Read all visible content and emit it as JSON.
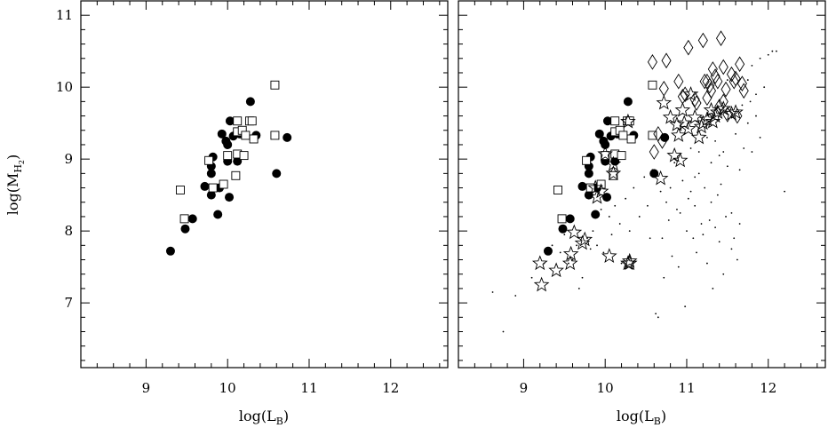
{
  "chart_data": [
    {
      "type": "scatter",
      "panel": "left",
      "xlabel": "log(L_B)",
      "ylabel": "log(M_H2)",
      "xlim": [
        8.2,
        12.7
      ],
      "ylim": [
        6.1,
        11.2
      ],
      "x_ticks": [
        9,
        10,
        11,
        12
      ],
      "y_ticks": [
        7,
        8,
        9,
        10,
        11
      ],
      "grid": false,
      "series": [
        {
          "marker": "filled-circle",
          "points": [
            [
              9.3,
              7.72
            ],
            [
              9.48,
              8.03
            ],
            [
              9.57,
              8.17
            ],
            [
              9.72,
              8.62
            ],
            [
              9.8,
              8.5
            ],
            [
              9.8,
              8.8
            ],
            [
              9.8,
              8.9
            ],
            [
              9.82,
              9.03
            ],
            [
              9.88,
              8.23
            ],
            [
              9.9,
              8.6
            ],
            [
              9.93,
              9.35
            ],
            [
              9.98,
              9.25
            ],
            [
              10.0,
              9.2
            ],
            [
              10.0,
              8.97
            ],
            [
              10.02,
              8.47
            ],
            [
              10.03,
              9.53
            ],
            [
              10.07,
              9.32
            ],
            [
              10.12,
              8.97
            ],
            [
              10.15,
              9.35
            ],
            [
              10.28,
              9.8
            ],
            [
              10.35,
              9.33
            ],
            [
              10.6,
              8.8
            ],
            [
              10.73,
              9.3
            ]
          ]
        },
        {
          "marker": "open-square",
          "points": [
            [
              9.42,
              8.57
            ],
            [
              9.47,
              8.17
            ],
            [
              9.77,
              8.98
            ],
            [
              9.82,
              8.6
            ],
            [
              9.95,
              8.65
            ],
            [
              10.0,
              9.05
            ],
            [
              10.1,
              8.77
            ],
            [
              10.12,
              9.38
            ],
            [
              10.12,
              9.07
            ],
            [
              10.18,
              9.4
            ],
            [
              10.2,
              9.05
            ],
            [
              10.22,
              9.33
            ],
            [
              10.27,
              9.53
            ],
            [
              10.3,
              9.53
            ],
            [
              10.32,
              9.28
            ],
            [
              10.58,
              10.03
            ],
            [
              10.58,
              9.33
            ],
            [
              10.12,
              9.53
            ]
          ]
        }
      ]
    },
    {
      "type": "scatter",
      "panel": "right",
      "xlabel": "log(L_B)",
      "ylabel": "",
      "xlim": [
        8.2,
        12.7
      ],
      "ylim": [
        6.1,
        11.2
      ],
      "x_ticks": [
        9,
        10,
        11,
        12
      ],
      "y_ticks": [
        7,
        8,
        9,
        10,
        11
      ],
      "grid": false,
      "series": [
        {
          "marker": "filled-circle",
          "points": [
            [
              9.3,
              7.72
            ],
            [
              9.48,
              8.03
            ],
            [
              9.57,
              8.17
            ],
            [
              9.72,
              8.62
            ],
            [
              9.8,
              8.5
            ],
            [
              9.8,
              8.8
            ],
            [
              9.8,
              8.9
            ],
            [
              9.82,
              9.03
            ],
            [
              9.88,
              8.23
            ],
            [
              9.9,
              8.6
            ],
            [
              9.93,
              9.35
            ],
            [
              9.98,
              9.25
            ],
            [
              10.0,
              9.2
            ],
            [
              10.0,
              8.97
            ],
            [
              10.02,
              8.47
            ],
            [
              10.03,
              9.53
            ],
            [
              10.07,
              9.32
            ],
            [
              10.12,
              8.97
            ],
            [
              10.15,
              9.35
            ],
            [
              10.28,
              9.8
            ],
            [
              10.35,
              9.33
            ],
            [
              10.6,
              8.8
            ],
            [
              10.73,
              9.3
            ]
          ]
        },
        {
          "marker": "open-square",
          "points": [
            [
              9.42,
              8.57
            ],
            [
              9.47,
              8.17
            ],
            [
              9.77,
              8.98
            ],
            [
              9.82,
              8.6
            ],
            [
              9.95,
              8.65
            ],
            [
              10.0,
              9.05
            ],
            [
              10.1,
              8.77
            ],
            [
              10.12,
              9.38
            ],
            [
              10.12,
              9.07
            ],
            [
              10.18,
              9.4
            ],
            [
              10.2,
              9.05
            ],
            [
              10.22,
              9.33
            ],
            [
              10.27,
              9.53
            ],
            [
              10.3,
              9.53
            ],
            [
              10.32,
              9.28
            ],
            [
              10.58,
              10.03
            ],
            [
              10.58,
              9.33
            ],
            [
              10.12,
              9.53
            ]
          ]
        },
        {
          "marker": "open-star",
          "points": [
            [
              9.2,
              7.55
            ],
            [
              9.22,
              7.25
            ],
            [
              9.4,
              7.45
            ],
            [
              9.57,
              7.55
            ],
            [
              9.58,
              7.68
            ],
            [
              9.62,
              7.98
            ],
            [
              9.72,
              7.83
            ],
            [
              9.75,
              7.88
            ],
            [
              9.88,
              8.6
            ],
            [
              9.9,
              8.47
            ],
            [
              9.95,
              8.55
            ],
            [
              10.0,
              9.07
            ],
            [
              10.05,
              7.65
            ],
            [
              10.1,
              8.93
            ],
            [
              10.1,
              8.8
            ],
            [
              10.28,
              7.55
            ],
            [
              10.3,
              7.58
            ],
            [
              10.3,
              7.55
            ],
            [
              10.28,
              9.52
            ],
            [
              10.68,
              8.73
            ],
            [
              10.72,
              9.78
            ],
            [
              10.8,
              9.58
            ],
            [
              10.85,
              9.05
            ],
            [
              10.88,
              9.48
            ],
            [
              10.9,
              9.33
            ],
            [
              10.92,
              8.98
            ],
            [
              10.95,
              9.68
            ],
            [
              11.05,
              9.9
            ],
            [
              11.1,
              9.58
            ],
            [
              11.15,
              9.3
            ],
            [
              11.2,
              9.5
            ],
            [
              11.25,
              9.55
            ],
            [
              11.3,
              9.68
            ],
            [
              11.35,
              9.6
            ],
            [
              11.38,
              9.65
            ],
            [
              11.45,
              9.7
            ],
            [
              11.55,
              9.63
            ],
            [
              11.6,
              9.65
            ],
            [
              11.02,
              9.42
            ],
            [
              11.32,
              9.52
            ],
            [
              11.18,
              9.45
            ],
            [
              10.97,
              9.5
            ]
          ]
        },
        {
          "marker": "open-diamond",
          "points": [
            [
              10.58,
              10.35
            ],
            [
              10.65,
              9.35
            ],
            [
              10.72,
              9.98
            ],
            [
              10.75,
              10.37
            ],
            [
              10.9,
              10.08
            ],
            [
              10.95,
              9.87
            ],
            [
              10.98,
              9.9
            ],
            [
              11.02,
              10.55
            ],
            [
              11.1,
              9.83
            ],
            [
              11.12,
              9.78
            ],
            [
              11.2,
              10.65
            ],
            [
              11.22,
              10.08
            ],
            [
              11.25,
              10.08
            ],
            [
              11.28,
              10.02
            ],
            [
              11.32,
              10.25
            ],
            [
              11.35,
              10.15
            ],
            [
              11.38,
              10.08
            ],
            [
              11.4,
              9.73
            ],
            [
              11.42,
              10.68
            ],
            [
              11.45,
              10.28
            ],
            [
              11.48,
              9.97
            ],
            [
              11.5,
              9.62
            ],
            [
              11.55,
              10.18
            ],
            [
              11.58,
              10.08
            ],
            [
              11.6,
              10.12
            ],
            [
              11.65,
              10.32
            ],
            [
              11.68,
              10.05
            ],
            [
              11.62,
              9.6
            ],
            [
              11.3,
              9.95
            ],
            [
              11.25,
              9.85
            ],
            [
              11.7,
              9.95
            ],
            [
              10.6,
              9.1
            ],
            [
              10.7,
              9.25
            ],
            [
              11.45,
              9.8
            ]
          ]
        },
        {
          "marker": "dot",
          "points": [
            [
              8.62,
              7.15
            ],
            [
              8.75,
              6.6
            ],
            [
              8.9,
              7.1
            ],
            [
              9.1,
              7.35
            ],
            [
              9.25,
              7.55
            ],
            [
              9.35,
              7.8
            ],
            [
              9.45,
              7.7
            ],
            [
              9.5,
              7.95
            ],
            [
              9.55,
              7.55
            ],
            [
              9.6,
              7.6
            ],
            [
              9.65,
              7.8
            ],
            [
              9.68,
              7.2
            ],
            [
              9.72,
              7.35
            ],
            [
              9.78,
              7.9
            ],
            [
              9.82,
              7.75
            ],
            [
              9.85,
              8.0
            ],
            [
              9.9,
              7.8
            ],
            [
              9.95,
              8.3
            ],
            [
              9.98,
              7.7
            ],
            [
              10.05,
              8.2
            ],
            [
              10.08,
              7.95
            ],
            [
              10.12,
              8.35
            ],
            [
              10.18,
              8.1
            ],
            [
              10.2,
              7.55
            ],
            [
              10.25,
              8.45
            ],
            [
              10.3,
              8.0
            ],
            [
              10.35,
              8.6
            ],
            [
              10.42,
              8.2
            ],
            [
              10.48,
              8.75
            ],
            [
              10.52,
              8.35
            ],
            [
              10.55,
              7.9
            ],
            [
              10.58,
              8.85
            ],
            [
              10.62,
              6.85
            ],
            [
              10.65,
              6.8
            ],
            [
              10.68,
              8.55
            ],
            [
              10.7,
              7.9
            ],
            [
              10.72,
              7.35
            ],
            [
              10.75,
              8.4
            ],
            [
              10.78,
              8.15
            ],
            [
              10.8,
              8.6
            ],
            [
              10.82,
              7.65
            ],
            [
              10.85,
              8.95
            ],
            [
              10.88,
              8.3
            ],
            [
              10.9,
              7.5
            ],
            [
              10.92,
              8.25
            ],
            [
              10.95,
              8.7
            ],
            [
              10.98,
              6.95
            ],
            [
              11.0,
              8.0
            ],
            [
              11.02,
              8.45
            ],
            [
              11.05,
              8.55
            ],
            [
              11.08,
              7.9
            ],
            [
              11.1,
              8.35
            ],
            [
              11.12,
              7.7
            ],
            [
              11.15,
              8.8
            ],
            [
              11.18,
              8.1
            ],
            [
              11.2,
              7.95
            ],
            [
              11.22,
              8.6
            ],
            [
              11.25,
              7.55
            ],
            [
              11.28,
              8.15
            ],
            [
              11.3,
              8.4
            ],
            [
              11.32,
              7.2
            ],
            [
              11.35,
              8.05
            ],
            [
              11.38,
              8.5
            ],
            [
              11.4,
              7.85
            ],
            [
              11.42,
              8.65
            ],
            [
              11.45,
              7.4
            ],
            [
              11.48,
              8.2
            ],
            [
              11.5,
              8.9
            ],
            [
              11.55,
              7.75
            ],
            [
              11.58,
              7.9
            ],
            [
              11.62,
              7.6
            ],
            [
              11.65,
              8.1
            ],
            [
              11.7,
              9.15
            ],
            [
              11.75,
              9.5
            ],
            [
              11.78,
              9.8
            ],
            [
              11.8,
              10.3
            ],
            [
              11.85,
              9.9
            ],
            [
              11.9,
              10.4
            ],
            [
              11.95,
              10.0
            ],
            [
              12.0,
              10.45
            ],
            [
              12.05,
              10.5
            ],
            [
              12.1,
              10.5
            ],
            [
              11.55,
              8.25
            ],
            [
              11.15,
              9.1
            ],
            [
              11.25,
              9.3
            ],
            [
              11.35,
              9.25
            ],
            [
              11.05,
              9.15
            ],
            [
              11.45,
              9.1
            ],
            [
              11.6,
              9.35
            ],
            [
              11.68,
              9.75
            ],
            [
              11.75,
              10.1
            ],
            [
              11.85,
              9.6
            ],
            [
              11.9,
              9.3
            ],
            [
              11.5,
              10.1
            ],
            [
              11.8,
              9.1
            ],
            [
              12.2,
              8.55
            ],
            [
              11.65,
              8.85
            ],
            [
              11.3,
              8.95
            ],
            [
              11.1,
              8.75
            ],
            [
              11.4,
              9.05
            ]
          ]
        }
      ]
    }
  ]
}
